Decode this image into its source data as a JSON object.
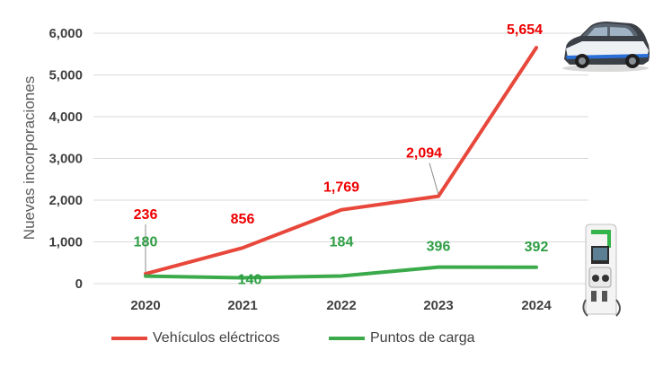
{
  "chart_data": {
    "type": "line",
    "title": "",
    "xlabel": "",
    "ylabel": "Nuevas incorporaciones",
    "ylim": [
      0,
      6000
    ],
    "yticks": [
      0,
      1000,
      2000,
      3000,
      4000,
      5000,
      6000
    ],
    "ytick_labels": [
      "0",
      "1,000",
      "2,000",
      "3,000",
      "4,000",
      "5,000",
      "6,000"
    ],
    "categories": [
      "2020",
      "2021",
      "2022",
      "2023",
      "2024"
    ],
    "grid": true,
    "legend_position": "bottom",
    "series": [
      {
        "name": "Vehículos eléctricos",
        "color": "#e8473b",
        "label_color": "#ee0000",
        "values": [
          236,
          856,
          1769,
          2094,
          5654
        ],
        "labels": [
          "236",
          "856",
          "1,769",
          "2,094",
          "5,654"
        ]
      },
      {
        "name": "Puntos de carga",
        "color": "#3aaa4a",
        "label_color": "#2e9e44",
        "values": [
          180,
          140,
          184,
          396,
          392
        ],
        "labels": [
          "180",
          "140",
          "184",
          "396",
          "392"
        ]
      }
    ],
    "icons": [
      "electric-car-icon",
      "charging-station-icon"
    ]
  }
}
